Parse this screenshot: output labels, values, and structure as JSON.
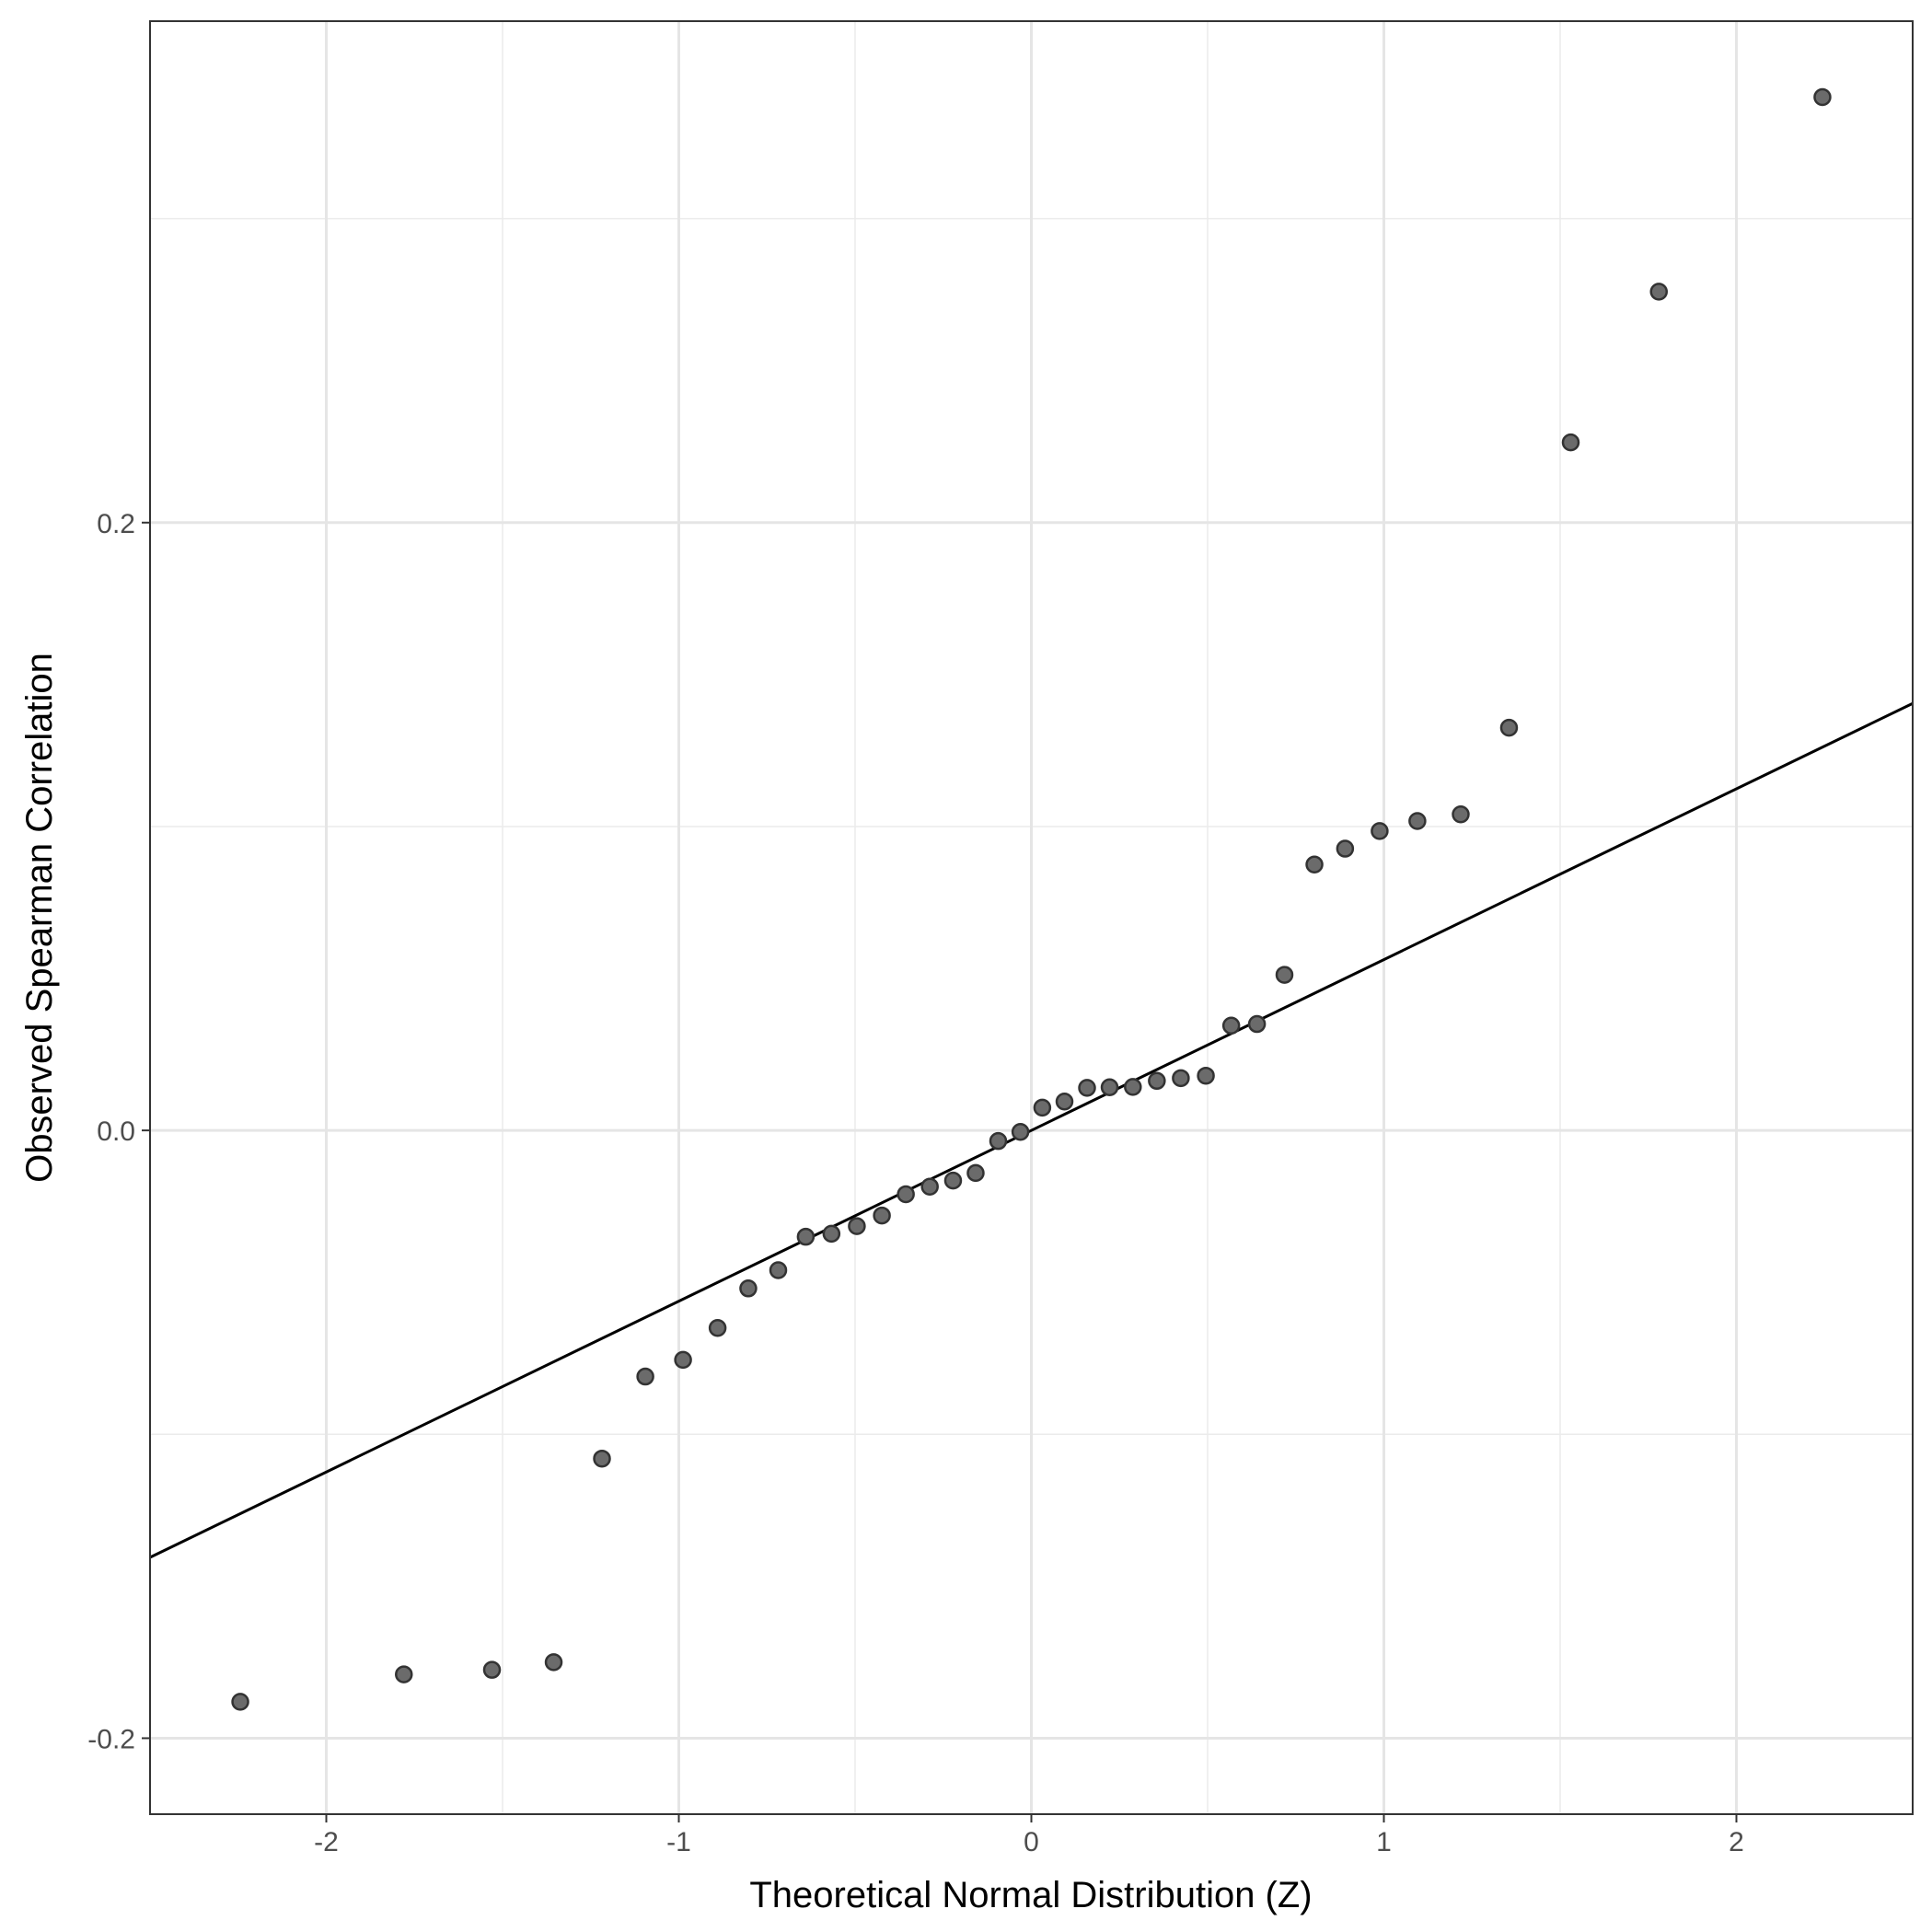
{
  "chart_data": {
    "type": "scatter",
    "title": "",
    "xlabel": "Theoretical Normal Distribution (Z)",
    "ylabel": "Observed Spearman Correlation",
    "xlim": [
      -2.5,
      2.5
    ],
    "ylim": [
      -0.225,
      0.365
    ],
    "x_ticks": [
      -2,
      -1,
      0,
      1,
      2
    ],
    "x_tick_labels": [
      "-2",
      "-1",
      "0",
      "1",
      "2"
    ],
    "y_ticks": [
      -0.2,
      0.0,
      0.2
    ],
    "y_tick_labels": [
      "-0.2",
      "0.0",
      "0.2"
    ],
    "x_minor_grid": [
      -1.5,
      -0.5,
      0.5,
      1.5
    ],
    "y_minor_grid": [
      -0.1,
      0.1,
      0.3
    ],
    "grid": true,
    "legend": "none",
    "point_color": "#6b6b6b",
    "line_color": "#000000",
    "reference_line": {
      "intercept": 0.0,
      "slope": 0.0562
    },
    "points": [
      {
        "x": -2.244,
        "y": -0.188
      },
      {
        "x": -1.78,
        "y": -0.179
      },
      {
        "x": -1.53,
        "y": -0.1775
      },
      {
        "x": -1.355,
        "y": -0.175
      },
      {
        "x": -1.218,
        "y": -0.108
      },
      {
        "x": -1.095,
        "y": -0.081
      },
      {
        "x": -0.988,
        "y": -0.0755
      },
      {
        "x": -0.89,
        "y": -0.065
      },
      {
        "x": -0.803,
        "y": -0.052
      },
      {
        "x": -0.718,
        "y": -0.046
      },
      {
        "x": -0.64,
        "y": -0.035
      },
      {
        "x": -0.567,
        "y": -0.034
      },
      {
        "x": -0.495,
        "y": -0.0315
      },
      {
        "x": -0.424,
        "y": -0.028
      },
      {
        "x": -0.356,
        "y": -0.021
      },
      {
        "x": -0.288,
        "y": -0.0185
      },
      {
        "x": -0.222,
        "y": -0.0165
      },
      {
        "x": -0.158,
        "y": -0.014
      },
      {
        "x": -0.094,
        "y": -0.0035
      },
      {
        "x": -0.031,
        "y": -0.0005
      },
      {
        "x": 0.031,
        "y": 0.0075
      },
      {
        "x": 0.094,
        "y": 0.0095
      },
      {
        "x": 0.158,
        "y": 0.014
      },
      {
        "x": 0.222,
        "y": 0.0142
      },
      {
        "x": 0.288,
        "y": 0.0143
      },
      {
        "x": 0.356,
        "y": 0.0163
      },
      {
        "x": 0.424,
        "y": 0.0172
      },
      {
        "x": 0.495,
        "y": 0.018
      },
      {
        "x": 0.567,
        "y": 0.0345
      },
      {
        "x": 0.64,
        "y": 0.035
      },
      {
        "x": 0.718,
        "y": 0.0512
      },
      {
        "x": 0.803,
        "y": 0.0875
      },
      {
        "x": 0.89,
        "y": 0.0927
      },
      {
        "x": 0.988,
        "y": 0.0985
      },
      {
        "x": 1.095,
        "y": 0.1018
      },
      {
        "x": 1.218,
        "y": 0.104
      },
      {
        "x": 1.355,
        "y": 0.1325
      },
      {
        "x": 1.53,
        "y": 0.2264
      },
      {
        "x": 1.78,
        "y": 0.276
      },
      {
        "x": 2.244,
        "y": 0.34
      }
    ]
  }
}
